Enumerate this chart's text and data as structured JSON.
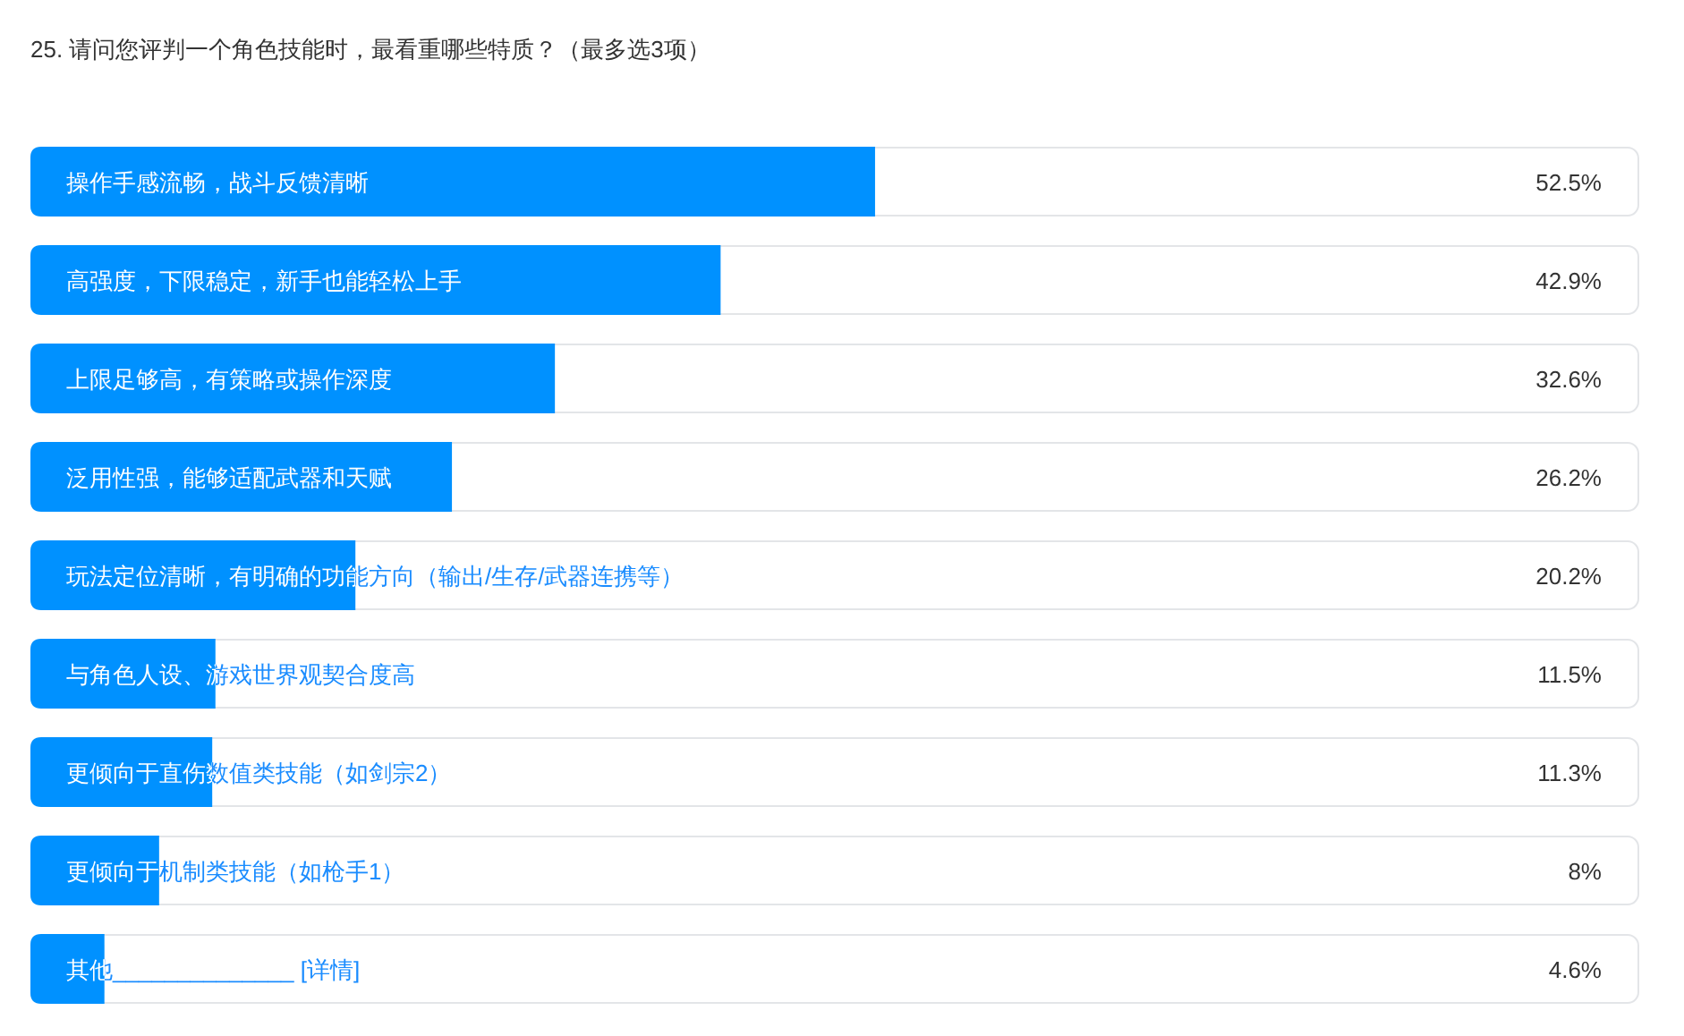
{
  "chart_data": {
    "type": "bar",
    "orientation": "horizontal",
    "title": "25. 请问您评判一个角色技能时，最看重哪些特质？（最多选3项）",
    "categories": [
      "操作手感流畅，战斗反馈清晰",
      "高强度，下限稳定，新手也能轻松上手",
      "上限足够高，有策略或操作深度",
      "泛用性强，能够适配武器和天赋",
      "玩法定位清晰，有明确的功能方向（输出/生存/武器连携等）",
      "与角色人设、游戏世界观契合度高",
      "更倾向于直伤数值类技能（如剑宗2）",
      "更倾向于机制类技能（如枪手1）",
      "其他______________ [详情]"
    ],
    "values": [
      52.5,
      42.9,
      32.6,
      26.2,
      20.2,
      11.5,
      11.3,
      8,
      4.6
    ],
    "value_labels": [
      "52.5%",
      "42.9%",
      "32.6%",
      "26.2%",
      "20.2%",
      "11.5%",
      "11.3%",
      "8%",
      "4.6%"
    ],
    "color": "#0091ff",
    "xlim": [
      0,
      100
    ]
  }
}
